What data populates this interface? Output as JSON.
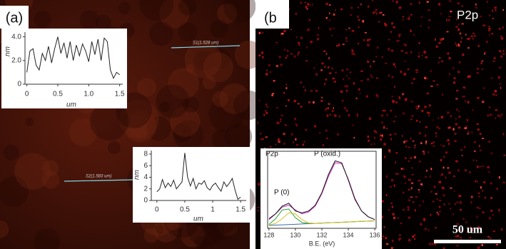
{
  "panel_labels": [
    "(a)",
    "(b"
  ],
  "image_annotations": [
    "S1(1.528 um)",
    "S2(1.583 um)",
    "P2p",
    "50 um"
  ],
  "chart_data": [
    {
      "type": "line",
      "xlabel": "um",
      "ylabel": "nm",
      "x": [
        0,
        0.05,
        0.1,
        0.15,
        0.2,
        0.25,
        0.3,
        0.35,
        0.4,
        0.45,
        0.5,
        0.55,
        0.6,
        0.65,
        0.7,
        0.75,
        0.8,
        0.85,
        0.9,
        0.95,
        1,
        1.05,
        1.1,
        1.15,
        1.2,
        1.25,
        1.3,
        1.35,
        1.4,
        1.45,
        1.5
      ],
      "series": [
        {
          "color": "#222222",
          "values": [
            1.0,
            2.8,
            3.0,
            1.6,
            1.2,
            2.6,
            2.0,
            3.2,
            1.8,
            3.0,
            4.0,
            2.6,
            3.5,
            2.2,
            3.6,
            2.0,
            3.3,
            2.4,
            3.4,
            2.8,
            1.9,
            3.6,
            2.5,
            3.8,
            2.0,
            3.9,
            3.6,
            1.2,
            0.5,
            1.0,
            0.8
          ]
        }
      ],
      "xlim": [
        -0.03,
        1.55
      ],
      "ylim": [
        0,
        4.4
      ],
      "xticks": [
        0,
        0.5,
        {
          "value": 1,
          "label": "1.0"
        },
        1.5
      ],
      "yticks": [
        0,
        {
          "value": 2,
          "label": "2.0"
        },
        {
          "value": 4,
          "label": "4.0"
        }
      ]
    },
    {
      "type": "line",
      "xlabel": "um",
      "ylabel": "nm",
      "x": [
        0,
        0.05,
        0.1,
        0.15,
        0.2,
        0.25,
        0.3,
        0.35,
        0.4,
        0.45,
        0.5,
        0.55,
        0.6,
        0.65,
        0.7,
        0.75,
        0.8,
        0.85,
        0.9,
        0.95,
        1,
        1.05,
        1.1,
        1.15,
        1.2,
        1.25,
        1.3,
        1.35,
        1.4,
        1.45,
        1.5
      ],
      "series": [
        {
          "color": "#222222",
          "values": [
            1.5,
            2.0,
            3.6,
            2.2,
            3.0,
            2.4,
            3.5,
            2.0,
            2.6,
            3.2,
            8.2,
            4.0,
            2.5,
            3.8,
            2.0,
            3.0,
            2.8,
            3.4,
            2.2,
            1.8,
            2.6,
            3.0,
            2.2,
            1.6,
            3.2,
            2.4,
            3.0,
            3.8,
            1.8,
            0.2,
            0.6
          ]
        }
      ],
      "xlim": [
        -0.1,
        1.6
      ],
      "ylim": [
        0,
        8.6
      ],
      "xticks": [
        0,
        0.5,
        1,
        1.5
      ],
      "yticks": [
        0,
        2,
        4,
        6,
        8
      ]
    },
    {
      "type": "line",
      "xlabel": "B.E. (eV)",
      "annotations": [
        "P2p",
        "P (oxid.)",
        "P (0)"
      ],
      "x": [
        128,
        128.5,
        129,
        129.5,
        130,
        130.5,
        131,
        131.5,
        132,
        132.5,
        133,
        133.5,
        134,
        134.5,
        135,
        135.5,
        136
      ],
      "series": [
        {
          "color": "#3a6fb0",
          "values": [
            0.3,
            0.33,
            0.36,
            0.39,
            0.42,
            0.45,
            0.48,
            0.51,
            0.54,
            0.57,
            0.6,
            0.63,
            0.66,
            0.69,
            0.72,
            0.75,
            0.78
          ]
        },
        {
          "color": "#2e9e3a",
          "values": [
            0.4,
            1.0,
            1.9,
            2.0,
            1.1,
            0.6,
            0.5,
            0.52,
            0.55,
            0.58,
            0.6,
            0.63,
            0.66,
            0.69,
            0.72,
            0.75,
            0.78
          ]
        },
        {
          "color": "#d8c020",
          "values": [
            0.35,
            0.5,
            1.0,
            1.6,
            1.5,
            0.9,
            0.55,
            0.52,
            0.55,
            0.58,
            0.6,
            0.63,
            0.66,
            0.69,
            0.72,
            0.75,
            0.78
          ]
        },
        {
          "color": "#d030c0",
          "values": [
            0.9,
            1.5,
            2.2,
            2.4,
            1.9,
            1.5,
            1.7,
            2.3,
            3.6,
            5.4,
            6.8,
            6.7,
            5.1,
            3.1,
            1.8,
            1.2,
            0.9
          ]
        },
        {
          "color": "#111111",
          "values": [
            1.0,
            1.5,
            2.3,
            2.6,
            1.8,
            1.6,
            1.8,
            2.4,
            3.7,
            5.6,
            7.0,
            6.8,
            5.0,
            3.0,
            1.8,
            1.2,
            0.9
          ]
        }
      ],
      "xlim": [
        127.9,
        136.1
      ],
      "ylim": [
        0,
        8
      ],
      "xticks": [
        128,
        130,
        132,
        134,
        136
      ]
    }
  ]
}
